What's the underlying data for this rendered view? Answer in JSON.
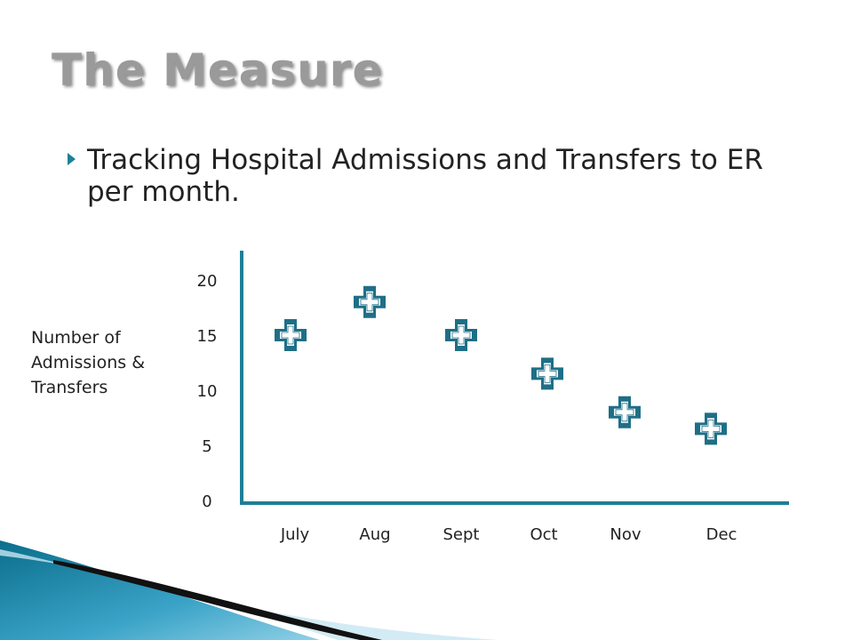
{
  "slide": {
    "title": "The Measure",
    "bullet": "Tracking Hospital Admissions and Transfers to ER per month."
  },
  "chart_data": {
    "type": "scatter",
    "title": "",
    "ylabel": "Number of Admissions & Transfers",
    "xlabel": "",
    "categories": [
      "July",
      "Aug",
      "Sept",
      "Oct",
      "Nov",
      "Dec"
    ],
    "values": [
      15,
      18,
      15,
      11.5,
      8,
      6.5
    ],
    "yticks": [
      0,
      5,
      10,
      15,
      20
    ],
    "ylim": [
      0,
      21.5
    ],
    "marker": "plus-cross-icon",
    "grid": false,
    "colors": {
      "marker": "#1e6f86",
      "axis": "#1e7f97"
    }
  }
}
